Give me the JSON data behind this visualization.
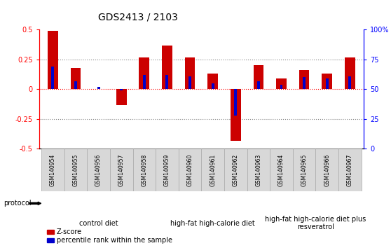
{
  "title": "GDS2413 / 2103",
  "samples": [
    "GSM140954",
    "GSM140955",
    "GSM140956",
    "GSM140957",
    "GSM140958",
    "GSM140959",
    "GSM140960",
    "GSM140961",
    "GSM140962",
    "GSM140963",
    "GSM140964",
    "GSM140965",
    "GSM140966",
    "GSM140967"
  ],
  "zscore": [
    0.49,
    0.18,
    0.0,
    -0.13,
    0.27,
    0.37,
    0.27,
    0.13,
    -0.43,
    0.2,
    0.09,
    0.16,
    0.13,
    0.27
  ],
  "percentile": [
    0.19,
    0.07,
    0.02,
    -0.01,
    0.12,
    0.12,
    0.11,
    0.05,
    -0.22,
    0.07,
    0.04,
    0.1,
    0.09,
    0.11
  ],
  "zscore_color": "#cc0000",
  "percentile_color": "#0000cc",
  "ylim": [
    -0.5,
    0.5
  ],
  "yticks_left": [
    -0.5,
    -0.25,
    0.0,
    0.25,
    0.5
  ],
  "yticks_right": [
    0,
    25,
    50,
    75,
    100
  ],
  "hlines": [
    -0.25,
    0.0,
    0.25
  ],
  "groups": [
    {
      "label": "control diet",
      "start": 0,
      "end": 5,
      "color": "#bbeeaa"
    },
    {
      "label": "high-fat high-calorie diet",
      "start": 5,
      "end": 10,
      "color": "#44cc44"
    },
    {
      "label": "high-fat high-calorie diet plus\nresveratrol",
      "start": 10,
      "end": 14,
      "color": "#77cc77"
    }
  ],
  "protocol_label": "protocol",
  "legend_zscore": "Z-score",
  "legend_percentile": "percentile rank within the sample",
  "bar_width": 0.45,
  "blue_bar_width": 0.12,
  "sample_box_color": "#d8d8d8",
  "sample_box_edge": "#aaaaaa",
  "title_fontsize": 10,
  "bar_fontsize": 6,
  "group_fontsize": 7
}
